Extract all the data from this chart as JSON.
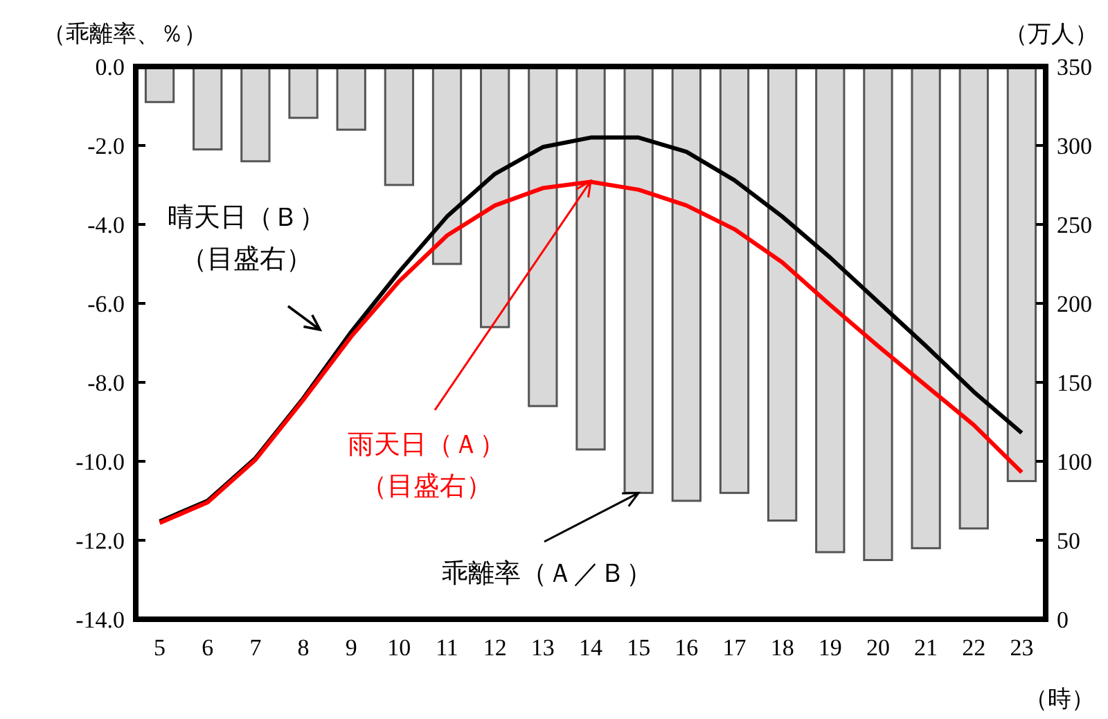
{
  "chart_data": {
    "type": "bar",
    "categories": [
      "5",
      "6",
      "7",
      "8",
      "9",
      "10",
      "11",
      "12",
      "13",
      "14",
      "15",
      "16",
      "17",
      "18",
      "19",
      "20",
      "21",
      "22",
      "23"
    ],
    "series": [
      {
        "color": "#d9d9d9",
        "values": [
          -0.9,
          -2.1,
          -2.4,
          -1.3,
          -1.6,
          -3.0,
          -5.0,
          -6.6,
          -8.6,
          -9.7,
          -10.8,
          -11.0,
          -10.8,
          -11.5,
          -12.3,
          -12.5,
          -12.2,
          -11.7,
          -10.5
        ]
      },
      {
        "type": "line",
        "axis": "y2",
        "color": "#000000",
        "values": [
          62,
          75,
          102,
          140,
          182,
          220,
          255,
          282,
          299,
          305,
          305,
          296,
          278,
          255,
          229,
          201,
          173,
          144,
          118
        ]
      },
      {
        "type": "line",
        "axis": "y2",
        "color": "#ff0000",
        "values": [
          61,
          74,
          101,
          139,
          179,
          214,
          243,
          262,
          273,
          277,
          272,
          262,
          247,
          226,
          199,
          173,
          148,
          123,
          93
        ]
      }
    ],
    "ylabel": "（乖離率、％）",
    "y2label": "（万人）",
    "xlabel": "（時）",
    "ylim": [
      -14,
      0
    ],
    "yticks": [
      {
        "value": 0,
        "label": "0.0"
      },
      {
        "value": -2,
        "label": "-2.0"
      },
      {
        "value": -4,
        "label": "-4.0"
      },
      {
        "value": -6,
        "label": "-6.0"
      },
      {
        "value": -8,
        "label": "-8.0"
      },
      {
        "value": -10,
        "label": "-10.0"
      },
      {
        "value": -12,
        "label": "-12.0"
      },
      {
        "value": -14,
        "label": "-14.0"
      }
    ],
    "y2lim": [
      0,
      350
    ],
    "y2ticks": [
      0,
      50,
      100,
      150,
      200,
      250,
      300,
      350
    ],
    "annotations": [
      "晴天日（Ｂ）（目盛右）",
      {
        "text": "雨天日（Ａ）（目盛右）",
        "x": "14",
        "y": -2.9
      },
      {
        "text": "乖離率（Ａ／Ｂ）",
        "x": "15",
        "y": -10.8
      }
    ],
    "grid": false
  }
}
